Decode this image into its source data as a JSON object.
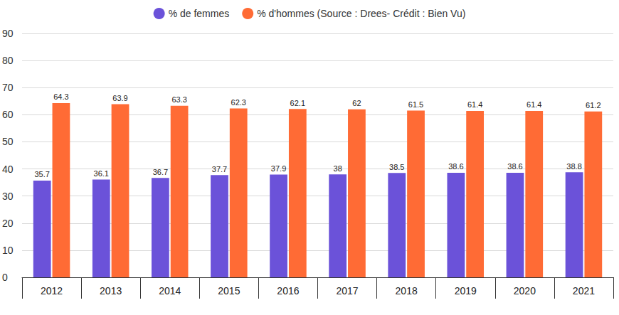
{
  "chart_data": {
    "type": "bar",
    "categories": [
      "2012",
      "2013",
      "2014",
      "2015",
      "2016",
      "2017",
      "2018",
      "2019",
      "2020",
      "2021"
    ],
    "series": [
      {
        "name": "% de femmes",
        "color": "#6b52d9",
        "values": [
          35.7,
          36.1,
          36.7,
          37.7,
          37.9,
          38,
          38.5,
          38.6,
          38.6,
          38.8
        ]
      },
      {
        "name": "% d'hommes (Source : Drees- Crédit : Bien Vu)",
        "color": "#ff6b35",
        "values": [
          64.3,
          63.9,
          63.3,
          62.3,
          62.1,
          62,
          61.5,
          61.4,
          61.4,
          61.2
        ]
      }
    ],
    "ylim": [
      0,
      90
    ],
    "yticks": [
      0,
      10,
      20,
      30,
      40,
      50,
      60,
      70,
      80,
      90
    ],
    "grid": true,
    "legend": "top",
    "data_labels": true
  }
}
